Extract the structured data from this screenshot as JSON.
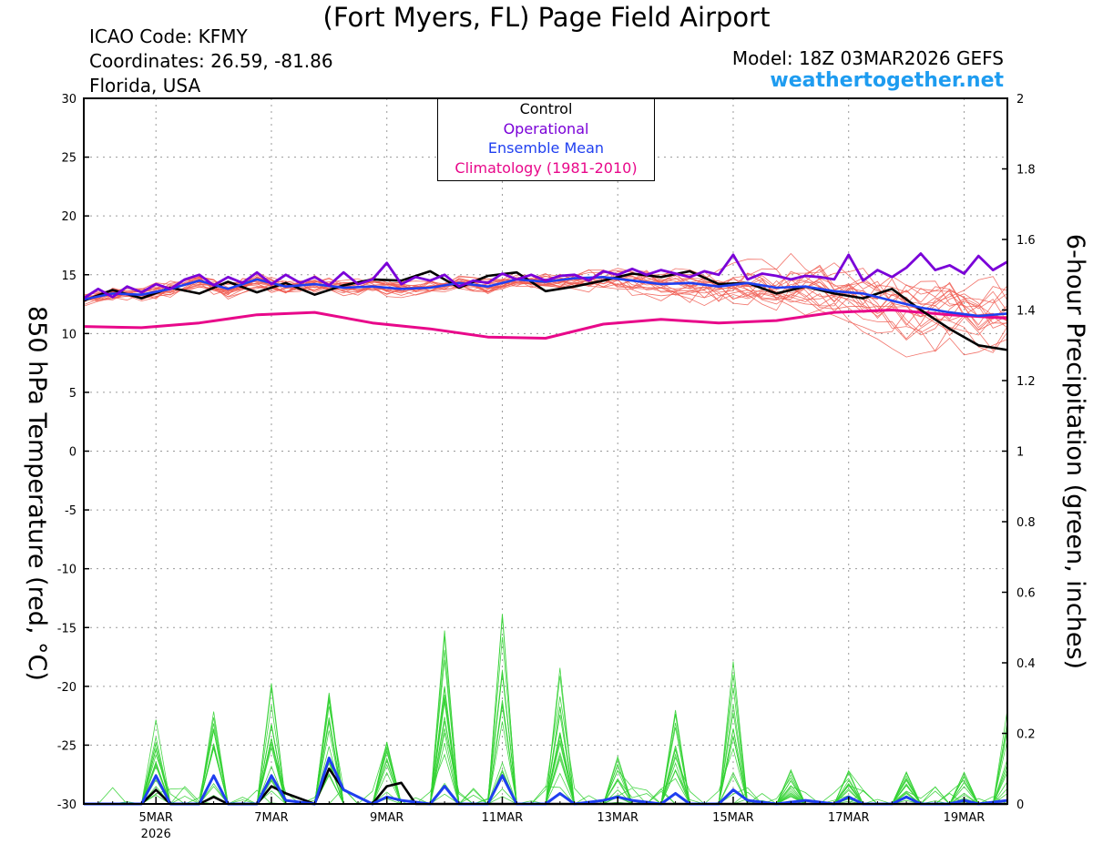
{
  "header": {
    "title": "(Fort Myers, FL) Page Field Airport",
    "icao": "ICAO Code: KFMY",
    "coordinates": "Coordinates: 26.59, -81.86",
    "region": "Florida, USA",
    "model": "Model: 18Z 03MAR2026 GEFS",
    "site": "weathertogether.net"
  },
  "legend": {
    "control": "Control",
    "operational": "Operational",
    "mean": "Ensemble Mean",
    "climatology": "Climatology (1981-2010)"
  },
  "colors": {
    "control": "#000000",
    "operational": "#7a00d8",
    "mean": "#1f3ff0",
    "climatology": "#e8088a",
    "members_temp": "#f05a50",
    "members_precip": "#32d232",
    "site": "#1e9cf0"
  },
  "chart_data": {
    "type": "line",
    "xlabel": "",
    "ylabel_left": "850 hPa Temperature (red, °C)",
    "ylabel_right": "6-hour Precipitation (green, inches)",
    "ylim_left": [
      -30,
      30
    ],
    "ylim_right": [
      0,
      2
    ],
    "yticks_left": [
      30,
      25,
      20,
      15,
      10,
      5,
      0,
      -5,
      -10,
      -15,
      -20,
      -25,
      -30
    ],
    "yticks_right": [
      2,
      1.8,
      1.6,
      1.4,
      1.2,
      1,
      0.8,
      0.6,
      0.4,
      0.2,
      0
    ],
    "x_range_days": [
      3.75,
      19.75
    ],
    "xticks": [
      {
        "day": 5,
        "label": "5MAR",
        "sublabel": "2026"
      },
      {
        "day": 7,
        "label": "7MAR"
      },
      {
        "day": 9,
        "label": "9MAR"
      },
      {
        "day": 11,
        "label": "11MAR"
      },
      {
        "day": 13,
        "label": "13MAR"
      },
      {
        "day": 15,
        "label": "15MAR"
      },
      {
        "day": 17,
        "label": "17MAR"
      },
      {
        "day": 19,
        "label": "19MAR"
      }
    ],
    "grid": true,
    "legend_position": "top-center",
    "series": [
      {
        "name": "Climatology (1981-2010)",
        "key": "climatology",
        "axis": "left",
        "x": [
          3.75,
          4.75,
          5.75,
          6.75,
          7.75,
          8.75,
          9.75,
          10.75,
          11.75,
          12.75,
          13.75,
          14.75,
          15.75,
          16.75,
          17.75,
          18.75,
          19.75
        ],
        "y": [
          10.6,
          10.5,
          10.9,
          11.6,
          11.8,
          10.9,
          10.4,
          9.7,
          9.6,
          10.8,
          11.2,
          10.9,
          11.1,
          11.8,
          12.0,
          11.6,
          11.3
        ]
      },
      {
        "name": "Ensemble Mean",
        "key": "mean",
        "axis": "left",
        "x": [
          3.75,
          4.25,
          4.75,
          5.25,
          5.75,
          6.25,
          6.75,
          7.25,
          7.75,
          8.25,
          8.75,
          9.25,
          9.75,
          10.25,
          10.75,
          11.25,
          11.75,
          12.25,
          12.75,
          13.25,
          13.75,
          14.25,
          14.75,
          15.25,
          15.75,
          16.25,
          16.75,
          17.25,
          17.75,
          18.25,
          18.75,
          19.25,
          19.75
        ],
        "y": [
          12.9,
          13.4,
          13.3,
          13.8,
          14.5,
          13.8,
          14.6,
          14.0,
          14.2,
          13.9,
          14.0,
          13.8,
          13.9,
          14.3,
          14.0,
          14.6,
          14.4,
          14.7,
          14.8,
          14.5,
          14.2,
          14.3,
          14.0,
          14.3,
          13.9,
          14.0,
          13.6,
          13.4,
          12.8,
          12.2,
          11.8,
          11.5,
          11.7
        ]
      },
      {
        "name": "Control",
        "key": "control",
        "axis": "left",
        "x": [
          3.75,
          4.25,
          4.75,
          5.25,
          5.75,
          6.25,
          6.75,
          7.25,
          7.75,
          8.25,
          8.75,
          9.25,
          9.75,
          10.25,
          10.75,
          11.25,
          11.75,
          12.25,
          12.75,
          13.25,
          13.75,
          14.25,
          14.75,
          15.25,
          15.75,
          16.25,
          16.75,
          17.25,
          17.75,
          18.25,
          18.75,
          19.25,
          19.75
        ],
        "y": [
          12.8,
          13.7,
          13.0,
          13.9,
          13.4,
          14.4,
          13.5,
          14.3,
          13.3,
          14.1,
          14.6,
          14.5,
          15.3,
          13.9,
          14.9,
          15.2,
          13.6,
          14.0,
          14.5,
          15.1,
          14.8,
          15.3,
          14.2,
          14.3,
          13.4,
          14.0,
          13.4,
          13.0,
          13.8,
          12.0,
          10.4,
          9.0,
          8.6
        ]
      },
      {
        "name": "Operational",
        "key": "operational",
        "axis": "left",
        "x": [
          3.75,
          4.0,
          4.25,
          4.5,
          4.75,
          5.0,
          5.25,
          5.5,
          5.75,
          6.0,
          6.25,
          6.5,
          6.75,
          7.0,
          7.25,
          7.5,
          7.75,
          8.0,
          8.25,
          8.5,
          8.75,
          9.0,
          9.25,
          9.5,
          9.75,
          10.0,
          10.25,
          10.5,
          10.75,
          11.0,
          11.25,
          11.5,
          11.75,
          12.0,
          12.25,
          12.5,
          12.75,
          13.0,
          13.25,
          13.5,
          13.75,
          14.0,
          14.25,
          14.5,
          14.75,
          15.0,
          15.25,
          15.5,
          15.75,
          16.0,
          16.25,
          16.5,
          16.75,
          17.0,
          17.25,
          17.5,
          17.75,
          18.0,
          18.25,
          18.5,
          18.75,
          19.0,
          19.25,
          19.5,
          19.75
        ],
        "y": [
          13.0,
          13.8,
          13.1,
          14.0,
          13.5,
          14.2,
          13.8,
          14.6,
          15.0,
          14.1,
          14.8,
          14.3,
          15.2,
          14.2,
          15.0,
          14.3,
          14.8,
          14.1,
          15.2,
          14.2,
          14.6,
          16.0,
          14.2,
          14.8,
          14.5,
          15.0,
          14.0,
          14.5,
          14.3,
          15.1,
          14.6,
          15.0,
          14.5,
          14.9,
          15.0,
          14.5,
          15.3,
          15.0,
          15.5,
          15.0,
          15.4,
          15.1,
          14.8,
          15.3,
          15.0,
          16.7,
          14.6,
          15.1,
          14.9,
          14.6,
          14.9,
          14.8,
          14.6,
          16.7,
          14.5,
          15.4,
          14.8,
          15.6,
          16.8,
          15.4,
          15.8,
          15.1,
          16.6,
          15.4,
          16.1
        ]
      },
      {
        "name": "Control",
        "key": "control_precip",
        "axis": "right",
        "x": [
          3.75,
          4.25,
          4.75,
          5.0,
          5.25,
          5.75,
          6.0,
          6.25,
          6.75,
          7.0,
          7.25,
          7.75,
          8.0,
          8.25,
          8.75,
          9.0,
          9.25,
          9.5,
          9.75,
          10.25,
          10.75,
          11.25,
          11.75,
          12.25,
          12.75,
          13.25,
          13.75,
          14.25,
          14.75,
          15.25,
          15.75,
          16.25,
          16.75,
          17.25,
          17.75,
          18.25,
          18.75,
          19.25,
          19.75
        ],
        "y": [
          0.0,
          0.0,
          0.0,
          0.04,
          0.0,
          0.0,
          0.02,
          0.0,
          0.0,
          0.05,
          0.03,
          0.0,
          0.1,
          0.04,
          0.0,
          0.05,
          0.06,
          0.0,
          0.0,
          0.0,
          0.0,
          0.0,
          0.0,
          0.0,
          0.0,
          0.0,
          0.0,
          0.0,
          0.0,
          0.0,
          0.0,
          0.0,
          0.0,
          0.0,
          0.0,
          0.0,
          0.0,
          0.0,
          0.0
        ]
      },
      {
        "name": "Ensemble Mean",
        "key": "mean_precip",
        "axis": "right",
        "x": [
          3.75,
          4.25,
          4.75,
          5.0,
          5.25,
          5.75,
          6.0,
          6.25,
          6.75,
          7.0,
          7.25,
          7.75,
          8.0,
          8.25,
          8.75,
          9.0,
          9.25,
          9.75,
          10.0,
          10.25,
          10.75,
          11.0,
          11.25,
          11.75,
          12.0,
          12.25,
          12.75,
          13.0,
          13.25,
          13.75,
          14.0,
          14.25,
          14.75,
          15.0,
          15.25,
          15.75,
          16.25,
          16.75,
          17.0,
          17.25,
          17.75,
          18.0,
          18.25,
          18.75,
          19.0,
          19.25,
          19.75
        ],
        "y": [
          0.0,
          0.0,
          0.0,
          0.08,
          0.0,
          0.0,
          0.08,
          0.0,
          0.0,
          0.08,
          0.01,
          0.0,
          0.13,
          0.04,
          0.0,
          0.02,
          0.01,
          0.0,
          0.05,
          0.0,
          0.0,
          0.08,
          0.0,
          0.0,
          0.03,
          0.0,
          0.01,
          0.02,
          0.01,
          0.0,
          0.03,
          0.0,
          0.0,
          0.04,
          0.01,
          0.0,
          0.01,
          0.0,
          0.02,
          0.0,
          0.0,
          0.02,
          0.0,
          0.0,
          0.01,
          0.0,
          0.01
        ]
      }
    ]
  }
}
